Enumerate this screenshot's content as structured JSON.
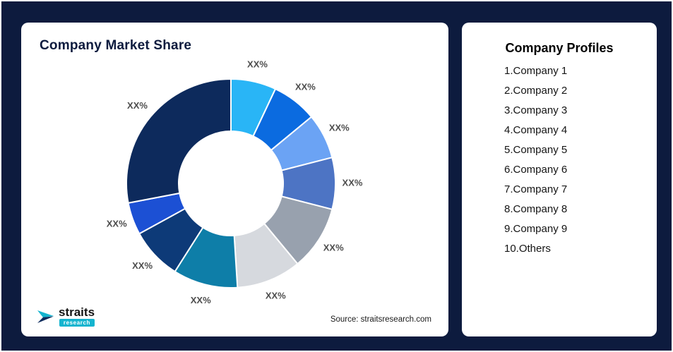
{
  "page": {
    "background": "#0d1b3e",
    "border_color": "#ffffff"
  },
  "market_share_card": {
    "title": "Company Market Share",
    "source": "Source: straitsresearch.com",
    "logo": {
      "brand": "straits",
      "sub_brand": "research",
      "accent": "#14b4cf"
    }
  },
  "profiles_card": {
    "title": "Company Profiles",
    "items": [
      "1.Company 1",
      "2.Company 2",
      "3.Company 3",
      "4.Company 4",
      "5.Company 5",
      "6.Company 6",
      "7.Company 7",
      "8.Company 8",
      "9.Company 9",
      "10.Others"
    ]
  },
  "chart_data": {
    "type": "pie",
    "subtype": "donut",
    "title": "Company Market Share",
    "value_label_placeholder": "XX%",
    "legend_position": "none",
    "start_angle_deg": -90,
    "segments": [
      {
        "name": "Company 1",
        "label": "XX%",
        "value": 7,
        "color": "#29b5f6"
      },
      {
        "name": "Company 2",
        "label": "XX%",
        "value": 7,
        "color": "#0b6be0"
      },
      {
        "name": "Company 3",
        "label": "XX%",
        "value": 7,
        "color": "#6ba3f4"
      },
      {
        "name": "Company 4",
        "label": "XX%",
        "value": 8,
        "color": "#4d74c4"
      },
      {
        "name": "Company 5",
        "label": "XX%",
        "value": 10,
        "color": "#98a1ae"
      },
      {
        "name": "Company 6",
        "label": "XX%",
        "value": 10,
        "color": "#d6d9de"
      },
      {
        "name": "Company 7",
        "label": "XX%",
        "value": 10,
        "color": "#0e7ea8"
      },
      {
        "name": "Company 8",
        "label": "XX%",
        "value": 8,
        "color": "#0d3a78"
      },
      {
        "name": "Company 9",
        "label": "XX%",
        "value": 5,
        "color": "#1c50d4"
      },
      {
        "name": "Others",
        "label": "XX%",
        "value": 28,
        "color": "#0d2a5c"
      }
    ]
  }
}
